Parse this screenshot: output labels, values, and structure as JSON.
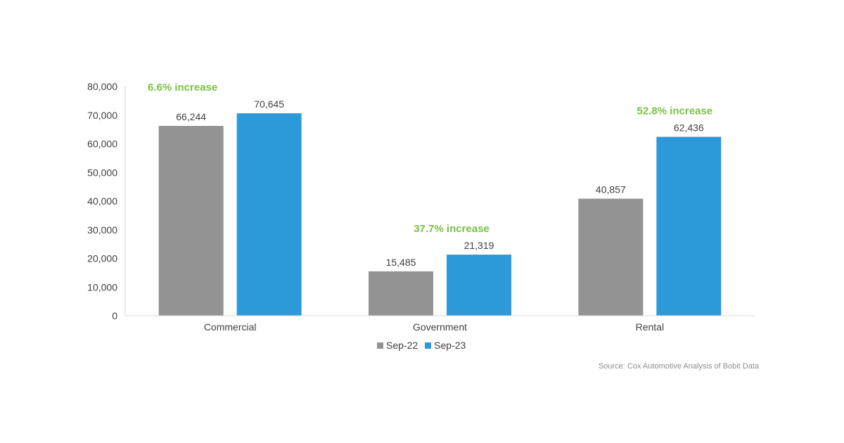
{
  "chart_data": {
    "type": "bar",
    "categories": [
      "Commercial",
      "Government",
      "Rental"
    ],
    "series": [
      {
        "name": "Sep-22",
        "values": [
          66244,
          15485,
          40857
        ],
        "color": "#939393"
      },
      {
        "name": "Sep-23",
        "values": [
          70645,
          21319,
          62436
        ],
        "color": "#2c9ad8"
      }
    ],
    "data_labels": [
      [
        "66,244",
        "15,485",
        "40,857"
      ],
      [
        "70,645",
        "21,319",
        "62,436"
      ]
    ],
    "annotations": [
      "6.6% increase",
      "37.7% increase",
      "52.8% increase"
    ],
    "annotation_color": "#7ac143",
    "ylim": [
      0,
      80000
    ],
    "yticks": [
      0,
      10000,
      20000,
      30000,
      40000,
      50000,
      60000,
      70000,
      80000
    ],
    "ytick_labels": [
      "0",
      "10,000",
      "20,000",
      "30,000",
      "40,000",
      "50,000",
      "60,000",
      "70,000",
      "80,000"
    ],
    "grid": false,
    "legend_position": "bottom",
    "source": "Source: Cox Automotive Analysis of Bobit Data"
  }
}
